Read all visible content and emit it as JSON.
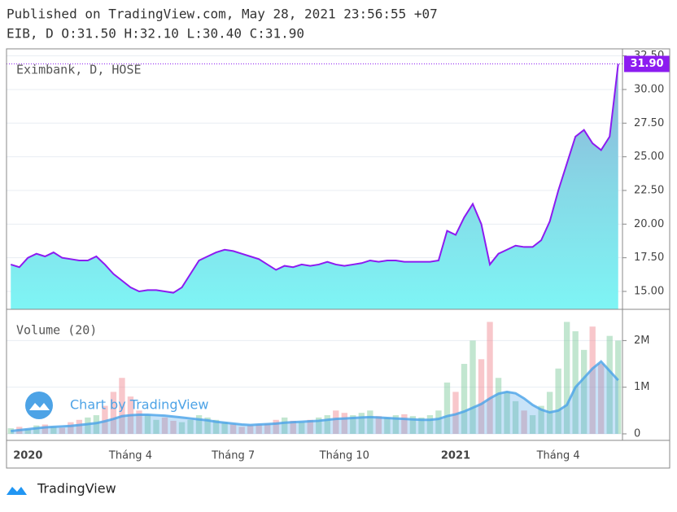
{
  "header": {
    "published": "Published on TradingView.com, May 28, 2021 23:56:55 +07",
    "ohlc": "EIB, D O:31.50 H:32.10 L:30.40 C:31.90"
  },
  "chart_data": [
    {
      "type": "area",
      "legend_text": "Eximbank, D, HOSE",
      "categories": [
        null,
        null,
        "2020",
        null,
        null,
        null,
        null,
        null,
        null,
        null,
        null,
        null,
        null,
        null,
        "Tháng 4",
        null,
        null,
        null,
        null,
        null,
        null,
        null,
        null,
        null,
        null,
        null,
        "Tháng 7",
        null,
        null,
        null,
        null,
        null,
        null,
        null,
        null,
        null,
        null,
        null,
        null,
        "Tháng 10",
        null,
        null,
        null,
        null,
        null,
        null,
        null,
        null,
        null,
        null,
        null,
        null,
        "2021",
        null,
        null,
        null,
        null,
        null,
        null,
        null,
        null,
        null,
        null,
        null,
        "Tháng 4",
        null,
        null,
        null,
        null,
        null,
        null,
        null
      ],
      "series": [
        {
          "name": "Eximbank",
          "color": "#8c1cf0",
          "values": [
            17.0,
            16.8,
            17.5,
            17.8,
            17.6,
            17.9,
            17.5,
            17.4,
            17.3,
            17.3,
            17.6,
            17.0,
            16.3,
            15.8,
            15.3,
            15.0,
            15.1,
            15.1,
            15.0,
            14.9,
            15.3,
            16.3,
            17.3,
            17.6,
            17.9,
            18.1,
            18.0,
            17.8,
            17.6,
            17.4,
            17.0,
            16.6,
            16.9,
            16.8,
            17.0,
            16.9,
            17.0,
            17.2,
            17.0,
            16.9,
            17.0,
            17.1,
            17.3,
            17.2,
            17.3,
            17.3,
            17.2,
            17.2,
            17.2,
            17.2,
            17.3,
            19.5,
            19.2,
            20.5,
            21.5,
            20.0,
            17.0,
            17.8,
            18.1,
            18.4,
            18.3,
            18.3,
            18.8,
            20.2,
            22.5,
            24.5,
            26.5,
            27.0,
            26.0,
            25.5,
            26.5,
            31.9
          ]
        }
      ],
      "last_label": "31.90",
      "ylim": [
        13.67,
        33.02
      ],
      "yticks": [
        {
          "value": 15,
          "label": "15.00"
        },
        {
          "value": 17.5,
          "label": "17.50"
        },
        {
          "value": 20,
          "label": "20.00"
        },
        {
          "value": 22.5,
          "label": "22.50"
        },
        {
          "value": 25,
          "label": "25.00"
        },
        {
          "value": 27.5,
          "label": "27.50"
        },
        {
          "value": 30,
          "label": "30.00"
        },
        {
          "value": 32.5,
          "label": "32.50"
        }
      ],
      "grid": true
    },
    {
      "type": "bar",
      "legend_text": "Volume (20)",
      "series": [
        {
          "name": "Volume",
          "up_color": "rgba(120,200,150,0.45)",
          "down_color": "rgba(240,130,140,0.45)",
          "values": [
            120000,
            150000,
            100000,
            180000,
            200000,
            150000,
            130000,
            250000,
            300000,
            350000,
            400000,
            600000,
            900000,
            1200000,
            800000,
            500000,
            400000,
            300000,
            350000,
            280000,
            250000,
            300000,
            400000,
            350000,
            300000,
            250000,
            200000,
            150000,
            180000,
            200000,
            220000,
            300000,
            350000,
            280000,
            250000,
            300000,
            350000,
            400000,
            500000,
            450000,
            400000,
            450000,
            500000,
            380000,
            350000,
            400000,
            420000,
            380000,
            350000,
            400000,
            500000,
            1100000,
            900000,
            1500000,
            2000000,
            1600000,
            2400000,
            1200000,
            900000,
            700000,
            500000,
            400000,
            600000,
            900000,
            1400000,
            2400000,
            2200000,
            1800000,
            2300000,
            1500000,
            2100000,
            2000000
          ]
        },
        {
          "name": "MA",
          "color": "#4aa3e8",
          "values": [
            60000,
            80000,
            100000,
            120000,
            140000,
            150000,
            160000,
            170000,
            190000,
            210000,
            230000,
            270000,
            320000,
            380000,
            400000,
            410000,
            410000,
            400000,
            390000,
            370000,
            350000,
            330000,
            310000,
            290000,
            260000,
            240000,
            220000,
            200000,
            190000,
            200000,
            210000,
            220000,
            240000,
            250000,
            260000,
            270000,
            280000,
            300000,
            320000,
            330000,
            340000,
            350000,
            360000,
            350000,
            340000,
            330000,
            320000,
            310000,
            300000,
            300000,
            320000,
            380000,
            420000,
            480000,
            560000,
            640000,
            760000,
            860000,
            900000,
            870000,
            760000,
            620000,
            520000,
            460000,
            500000,
            620000,
            1000000,
            1200000,
            1400000,
            1550000,
            1350000,
            1150000
          ]
        }
      ],
      "ylim": [
        -140000,
        2670000
      ],
      "yticks": [
        0,
        {
          "value": 1000000,
          "label": "1M"
        },
        {
          "value": 2000000,
          "label": "2M"
        }
      ],
      "grid": true
    }
  ],
  "watermark": "Chart by TradingView",
  "footer": "TradingView"
}
